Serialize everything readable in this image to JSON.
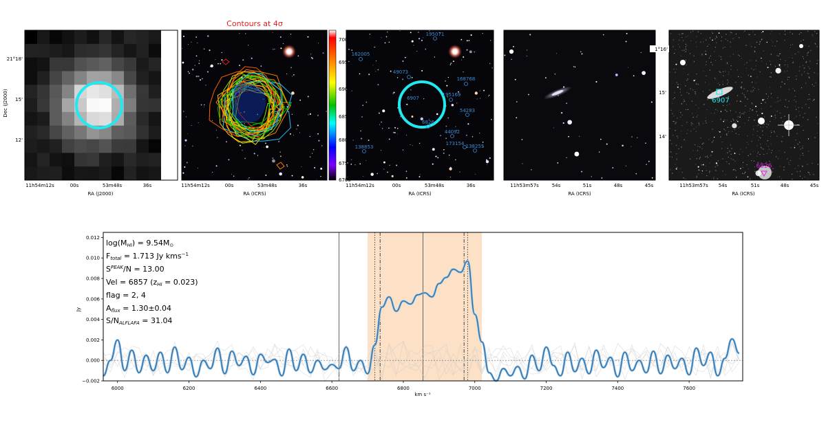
{
  "panels": {
    "contour_title": "Contours at 4σ",
    "p1": {
      "ylabel": "Dec (J2000)",
      "xlabel": "RA (J2000)",
      "yticks": [
        "21°18'",
        "15'",
        "12'"
      ],
      "xticks": [
        "11h54m12s",
        "00s",
        "53m48s",
        "36s"
      ]
    },
    "p2": {
      "xlabel": "RA (ICRS)",
      "xticks": [
        "11h54m12s",
        "00s",
        "53m48s",
        "36s"
      ],
      "colorbar_ticks": [
        "7000",
        "6950",
        "6900",
        "6850",
        "6800",
        "6750",
        "6700"
      ]
    },
    "p3": {
      "xlabel": "RA (ICRS)",
      "xticks": [
        "11h54m12s",
        "00s",
        "53m48s",
        "36s"
      ],
      "sources": [
        "195071",
        "162005",
        "49073",
        "168768",
        "195169",
        "6907",
        "54283",
        "6826",
        "44092",
        "138853",
        "173154",
        "138255"
      ]
    },
    "p4": {
      "xlabel": "RA (ICRS)",
      "xticks": [
        "11h53m57s",
        "54s",
        "51s",
        "48s",
        "45s"
      ]
    },
    "p5": {
      "xlabel": "RA (ICRS)",
      "xticks": [
        "11h53m57s",
        "54s",
        "51s",
        "48s",
        "45s"
      ],
      "yticks": [
        "1°16'",
        "15'",
        "14'"
      ],
      "label_cyan": "6907",
      "label_magenta": "6826"
    }
  },
  "annotations": {
    "mhi": "log(M",
    "mhi_sub": "HI",
    "mhi_rest": ") = 9.54M",
    "mhi_sun": "⊙",
    "ftot": "F",
    "ftot_sub": "total",
    "ftot_rest": " = 1.713 Jy kms",
    "ftot_sup": "−1",
    "snr": "S",
    "snr_sup": "PEAK",
    "snr_rest": "/N = 13.00",
    "vel": "Vel = 6857 (z",
    "vel_sub": "HI",
    "vel_rest": " = 0.023)",
    "flag": "flag = 2, 4",
    "aflux": "A",
    "aflux_sub": "flux",
    "aflux_rest": " = 1.30±0.04",
    "sna": "S/N",
    "sna_sub": "ALFLAFA",
    "sna_rest": " = 31.04"
  },
  "chart_data": {
    "type": "line",
    "xlabel": "km s⁻¹",
    "ylabel": "Jy",
    "xlim": [
      5960,
      7750
    ],
    "ylim": [
      -0.002,
      0.0125
    ],
    "xticks": [
      6000,
      6200,
      6400,
      6600,
      6800,
      7000,
      7200,
      7400,
      7600
    ],
    "yticks": [
      "−0.002",
      "0.000",
      "0.002",
      "0.004",
      "0.006",
      "0.008",
      "0.010",
      "0.012"
    ],
    "ytick_values": [
      -0.002,
      0.0,
      0.002,
      0.004,
      0.006,
      0.008,
      0.01,
      0.012
    ],
    "shaded_range": [
      6700,
      7020
    ],
    "vlines": {
      "solid": [
        6620,
        6855
      ],
      "dotted": [
        6720,
        6980
      ],
      "dashdot": [
        6735,
        6970
      ]
    },
    "series": [
      {
        "x": [
          5960,
          5980,
          6000,
          6020,
          6040,
          6060,
          6080,
          6100,
          6120,
          6140,
          6160,
          6180,
          6200,
          6220,
          6240,
          6260,
          6280,
          6300,
          6320,
          6340,
          6360,
          6380,
          6400,
          6420,
          6440,
          6460,
          6480,
          6500,
          6520,
          6540,
          6560,
          6580,
          6600,
          6620,
          6640,
          6660,
          6680,
          6700,
          6720,
          6740,
          6760,
          6780,
          6800,
          6820,
          6840,
          6860,
          6880,
          6900,
          6920,
          6940,
          6960,
          6980,
          7000,
          7020,
          7040,
          7060,
          7080,
          7100,
          7120,
          7140,
          7160,
          7180,
          7200,
          7220,
          7240,
          7260,
          7280,
          7300,
          7320,
          7340,
          7360,
          7380,
          7400,
          7420,
          7440,
          7460,
          7480,
          7500,
          7520,
          7540,
          7560,
          7580,
          7600,
          7620,
          7640,
          7660,
          7680,
          7700,
          7720,
          7740
        ],
        "values": [
          -0.0015,
          0.0,
          0.002,
          -0.001,
          0.001,
          -0.0012,
          0.0005,
          -0.001,
          0.0008,
          -0.0012,
          0.0013,
          -0.0009,
          0.0003,
          -0.0016,
          0.0,
          -0.0008,
          0.0012,
          -0.0013,
          0.0009,
          -0.0005,
          0.0004,
          -0.0014,
          0.0006,
          -0.0002,
          0.0001,
          -0.0015,
          0.0011,
          -0.001,
          0.0006,
          -0.0012,
          0.0,
          -0.0009,
          -0.0004,
          -0.0008,
          0.0013,
          -0.001,
          0.0,
          -0.0013,
          0.0015,
          0.0052,
          0.0062,
          0.0048,
          0.0058,
          0.0055,
          0.0064,
          0.0066,
          0.0062,
          0.0075,
          0.0081,
          0.0089,
          0.0086,
          0.0097,
          0.0045,
          0.0018,
          -0.0012,
          -0.002,
          -0.0008,
          -0.0015,
          -0.0006,
          -0.0018,
          0.0005,
          -0.001,
          0.0013,
          -0.0005,
          -0.0015,
          0.0008,
          -0.0011,
          0.0002,
          -0.0013,
          0.001,
          -0.0007,
          0.0003,
          -0.0016,
          0.0008,
          -0.001,
          0.0,
          -0.0012,
          0.0009,
          -0.0013,
          0.0005,
          -0.0008,
          0.0002,
          -0.0014,
          0.0012,
          -0.0005,
          0.0008,
          -0.0015,
          0.0002,
          0.0021,
          0.0007
        ]
      }
    ]
  }
}
